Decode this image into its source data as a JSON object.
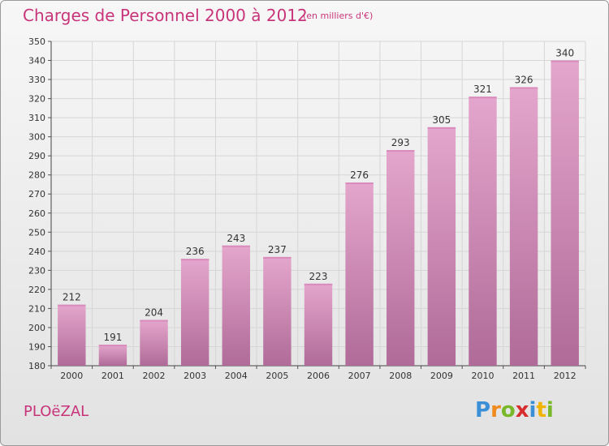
{
  "header": {
    "title": "Charges de Personnel 2000 à 2012",
    "subtitle": "(en milliers d'€)"
  },
  "footer": {
    "commune": "PLOëZAL",
    "logo_letters": [
      "P",
      "r",
      "o",
      "x",
      "i",
      "t",
      "i"
    ],
    "logo_colors": [
      "#3a8fd6",
      "#f08a1c",
      "#79b828",
      "#d82d2d",
      "#3a8fd6",
      "#f0b400",
      "#79b828"
    ]
  },
  "colors": {
    "title": "#c8347a",
    "bar_top": "#e4a6cc",
    "bar_bottom": "#b06b98",
    "grid": "#d6d6d6"
  },
  "chart_data": {
    "type": "bar",
    "categories": [
      "2000",
      "2001",
      "2002",
      "2003",
      "2004",
      "2005",
      "2006",
      "2007",
      "2008",
      "2009",
      "2010",
      "2011",
      "2012"
    ],
    "values": [
      212,
      191,
      204,
      236,
      243,
      237,
      223,
      276,
      293,
      305,
      321,
      326,
      340
    ],
    "ylim": [
      180,
      350
    ],
    "yticks": [
      "180",
      "190",
      "200",
      "210",
      "220",
      "230",
      "240",
      "250",
      "260",
      "270",
      "280",
      "290",
      "300",
      "310",
      "320",
      "330",
      "340",
      "350"
    ],
    "grid": true
  }
}
